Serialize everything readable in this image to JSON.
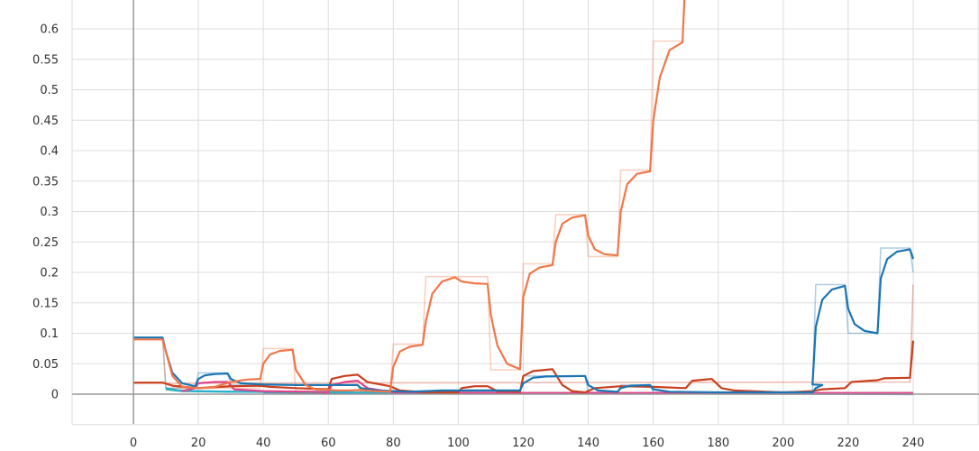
{
  "chart_data": {
    "type": "line",
    "x_ticks": [
      "0",
      "20",
      "40",
      "60",
      "80",
      "100",
      "120",
      "140",
      "160",
      "180",
      "200",
      "220",
      "240"
    ],
    "y_ticks": [
      "0",
      "0.05",
      "0.1",
      "0.15",
      "0.2",
      "0.25",
      "0.3",
      "0.35",
      "0.4",
      "0.45",
      "0.5",
      "0.55",
      "0.6"
    ],
    "xlim": [
      0,
      240
    ],
    "ylim": [
      -0.05,
      0.64
    ],
    "grid": true,
    "series": [
      {
        "color": "#f0774a",
        "raw": [
          [
            0,
            0.09
          ],
          [
            9,
            0.09
          ],
          [
            10,
            0.01
          ],
          [
            39,
            0.01
          ],
          [
            40,
            0.075
          ],
          [
            49,
            0.075
          ],
          [
            50,
            0.005
          ],
          [
            79,
            0.005
          ],
          [
            80,
            0.082
          ],
          [
            89,
            0.082
          ],
          [
            90,
            0.193
          ],
          [
            109,
            0.193
          ],
          [
            110,
            0.04
          ],
          [
            119,
            0.04
          ],
          [
            120,
            0.214
          ],
          [
            129,
            0.214
          ],
          [
            130,
            0.295
          ],
          [
            139,
            0.295
          ],
          [
            140,
            0.226
          ],
          [
            149,
            0.226
          ],
          [
            150,
            0.368
          ],
          [
            159,
            0.368
          ],
          [
            160,
            0.58
          ],
          [
            169,
            0.58
          ],
          [
            170,
            0.7
          ]
        ],
        "values": [
          [
            0,
            0.09
          ],
          [
            9,
            0.09
          ],
          [
            10,
            0.07
          ],
          [
            12,
            0.03
          ],
          [
            15,
            0.012
          ],
          [
            20,
            0.01
          ],
          [
            25,
            0.012
          ],
          [
            30,
            0.02
          ],
          [
            35,
            0.024
          ],
          [
            39,
            0.025
          ],
          [
            40,
            0.05
          ],
          [
            42,
            0.065
          ],
          [
            45,
            0.071
          ],
          [
            49,
            0.073
          ],
          [
            50,
            0.04
          ],
          [
            53,
            0.015
          ],
          [
            56,
            0.008
          ],
          [
            60,
            0.007
          ],
          [
            63,
            0.006
          ],
          [
            66,
            0.006
          ],
          [
            70,
            0.007
          ],
          [
            74,
            0.005
          ],
          [
            79,
            0.004
          ],
          [
            80,
            0.045
          ],
          [
            82,
            0.07
          ],
          [
            85,
            0.078
          ],
          [
            89,
            0.081
          ],
          [
            90,
            0.12
          ],
          [
            92,
            0.165
          ],
          [
            95,
            0.185
          ],
          [
            99,
            0.192
          ],
          [
            101,
            0.185
          ],
          [
            105,
            0.182
          ],
          [
            109,
            0.181
          ],
          [
            110,
            0.13
          ],
          [
            112,
            0.08
          ],
          [
            115,
            0.05
          ],
          [
            119,
            0.041
          ],
          [
            120,
            0.16
          ],
          [
            122,
            0.198
          ],
          [
            125,
            0.208
          ],
          [
            129,
            0.212
          ],
          [
            130,
            0.25
          ],
          [
            132,
            0.28
          ],
          [
            135,
            0.29
          ],
          [
            139,
            0.294
          ],
          [
            140,
            0.26
          ],
          [
            142,
            0.238
          ],
          [
            145,
            0.23
          ],
          [
            149,
            0.228
          ],
          [
            150,
            0.3
          ],
          [
            152,
            0.345
          ],
          [
            155,
            0.362
          ],
          [
            159,
            0.366
          ],
          [
            160,
            0.45
          ],
          [
            162,
            0.52
          ],
          [
            165,
            0.565
          ],
          [
            169,
            0.578
          ],
          [
            170,
            0.7
          ]
        ]
      },
      {
        "color": "#1a75b4",
        "raw": [
          [
            0,
            0.093
          ],
          [
            9,
            0.093
          ],
          [
            10,
            0.01
          ],
          [
            19,
            0.01
          ],
          [
            20,
            0.035
          ],
          [
            29,
            0.035
          ],
          [
            30,
            0.015
          ],
          [
            69,
            0.015
          ],
          [
            70,
            0.005
          ],
          [
            119,
            0.005
          ],
          [
            120,
            0.03
          ],
          [
            139,
            0.03
          ],
          [
            140,
            0.003
          ],
          [
            149,
            0.003
          ],
          [
            150,
            0.015
          ],
          [
            159,
            0.015
          ],
          [
            160,
            0.003
          ],
          [
            209,
            0.003
          ],
          [
            210,
            0.18
          ],
          [
            219,
            0.18
          ],
          [
            220,
            0.1
          ],
          [
            229,
            0.1
          ],
          [
            230,
            0.24
          ],
          [
            239,
            0.24
          ],
          [
            240,
            0.2
          ]
        ],
        "values": [
          [
            0,
            0.093
          ],
          [
            9,
            0.093
          ],
          [
            10,
            0.07
          ],
          [
            12,
            0.035
          ],
          [
            15,
            0.018
          ],
          [
            19,
            0.013
          ],
          [
            20,
            0.025
          ],
          [
            22,
            0.031
          ],
          [
            25,
            0.033
          ],
          [
            29,
            0.034
          ],
          [
            30,
            0.025
          ],
          [
            33,
            0.018
          ],
          [
            40,
            0.016
          ],
          [
            50,
            0.015
          ],
          [
            69,
            0.015
          ],
          [
            70,
            0.01
          ],
          [
            75,
            0.006
          ],
          [
            85,
            0.004
          ],
          [
            95,
            0.006
          ],
          [
            119,
            0.006
          ],
          [
            120,
            0.018
          ],
          [
            123,
            0.027
          ],
          [
            127,
            0.029
          ],
          [
            139,
            0.03
          ],
          [
            140,
            0.015
          ],
          [
            143,
            0.006
          ],
          [
            149,
            0.004
          ],
          [
            150,
            0.01
          ],
          [
            153,
            0.014
          ],
          [
            159,
            0.015
          ],
          [
            160,
            0.008
          ],
          [
            165,
            0.004
          ],
          [
            180,
            0.003
          ],
          [
            209,
            0.003
          ],
          [
            210,
            0.01
          ],
          [
            212,
            0.015
          ],
          [
            209,
            0.016
          ],
          [
            210,
            0.11
          ],
          [
            212,
            0.155
          ],
          [
            215,
            0.172
          ],
          [
            219,
            0.178
          ],
          [
            220,
            0.14
          ],
          [
            222,
            0.115
          ],
          [
            225,
            0.104
          ],
          [
            229,
            0.1
          ],
          [
            230,
            0.19
          ],
          [
            232,
            0.222
          ],
          [
            235,
            0.234
          ],
          [
            239,
            0.238
          ],
          [
            240,
            0.222
          ]
        ]
      },
      {
        "color": "#c9401f",
        "raw": [
          [
            0,
            0.018
          ],
          [
            239,
            0.02
          ],
          [
            240,
            0.18
          ]
        ],
        "values": [
          [
            0,
            0.019
          ],
          [
            9,
            0.019
          ],
          [
            12,
            0.014
          ],
          [
            20,
            0.01
          ],
          [
            30,
            0.013
          ],
          [
            39,
            0.014
          ],
          [
            42,
            0.012
          ],
          [
            50,
            0.01
          ],
          [
            60,
            0.008
          ],
          [
            61,
            0.025
          ],
          [
            65,
            0.03
          ],
          [
            69,
            0.032
          ],
          [
            72,
            0.02
          ],
          [
            79,
            0.013
          ],
          [
            82,
            0.006
          ],
          [
            90,
            0.003
          ],
          [
            100,
            0.003
          ],
          [
            101,
            0.01
          ],
          [
            105,
            0.013
          ],
          [
            109,
            0.013
          ],
          [
            112,
            0.005
          ],
          [
            119,
            0.004
          ],
          [
            120,
            0.03
          ],
          [
            123,
            0.038
          ],
          [
            127,
            0.04
          ],
          [
            129,
            0.041
          ],
          [
            132,
            0.015
          ],
          [
            135,
            0.005
          ],
          [
            139,
            0.003
          ],
          [
            142,
            0.01
          ],
          [
            150,
            0.013
          ],
          [
            160,
            0.012
          ],
          [
            170,
            0.01
          ],
          [
            172,
            0.022
          ],
          [
            178,
            0.025
          ],
          [
            181,
            0.01
          ],
          [
            185,
            0.006
          ],
          [
            195,
            0.004
          ],
          [
            200,
            0.003
          ],
          [
            205,
            0.004
          ],
          [
            209,
            0.005
          ],
          [
            212,
            0.008
          ],
          [
            219,
            0.01
          ],
          [
            221,
            0.02
          ],
          [
            229,
            0.023
          ],
          [
            231,
            0.026
          ],
          [
            239,
            0.027
          ],
          [
            240,
            0.088
          ]
        ]
      },
      {
        "color": "#e0458b",
        "raw": [],
        "values": [
          [
            15,
            0.005
          ],
          [
            19,
            0.01
          ],
          [
            20,
            0.018
          ],
          [
            25,
            0.02
          ],
          [
            29,
            0.02
          ],
          [
            31,
            0.008
          ],
          [
            40,
            0.005
          ],
          [
            55,
            0.004
          ],
          [
            60,
            0.003
          ],
          [
            61,
            0.015
          ],
          [
            65,
            0.02
          ],
          [
            69,
            0.022
          ],
          [
            72,
            0.01
          ],
          [
            80,
            0.003
          ],
          [
            120,
            0.002
          ],
          [
            240,
            0.002
          ]
        ]
      },
      {
        "color": "#2ab0d2",
        "raw": [],
        "values": [
          [
            10,
            0.01
          ],
          [
            14,
            0.006
          ],
          [
            19,
            0.005
          ],
          [
            30,
            0.004
          ],
          [
            60,
            0.004
          ],
          [
            70,
            0.002
          ],
          [
            120,
            0.001
          ],
          [
            240,
            0.001
          ]
        ]
      },
      {
        "color": "#3caa8a",
        "raw": [],
        "values": [
          [
            10,
            0.008
          ],
          [
            15,
            0.005
          ],
          [
            30,
            0.004
          ],
          [
            60,
            0.003
          ],
          [
            80,
            0.002
          ],
          [
            120,
            0.001
          ],
          [
            240,
            0.001
          ]
        ]
      },
      {
        "color": "#7b6cc9",
        "raw": [],
        "values": [
          [
            40,
            0.003
          ],
          [
            80,
            0.001
          ],
          [
            160,
            0.001
          ],
          [
            240,
            0.0
          ]
        ]
      }
    ]
  }
}
